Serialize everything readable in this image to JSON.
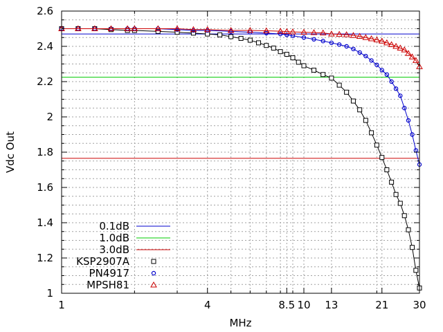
{
  "chart_data": {
    "type": "line",
    "title": "",
    "xlabel": "MHz",
    "ylabel": "Vdc Out",
    "xscale": "log",
    "xlim": [
      1,
      30
    ],
    "ylim": [
      1,
      2.6
    ],
    "grid": true,
    "legend_position": "bottom-left",
    "x_ticks": [
      1,
      4,
      8.5,
      10,
      13,
      21,
      30
    ],
    "x_tick_labels": [
      "1",
      "4",
      "8.5",
      "10",
      "13",
      "21",
      "30"
    ],
    "y_ticks": [
      1,
      1.2,
      1.4,
      1.6,
      1.8,
      2,
      2.2,
      2.4,
      2.6
    ],
    "y_tick_labels": [
      "1",
      "1.2",
      "1.4",
      "1.6",
      "1.8",
      "2",
      "2.2",
      "2.4",
      "2.6"
    ],
    "y_minor_step": 0.05,
    "x_minor_ticks": [
      2,
      3,
      5,
      6,
      7,
      8,
      9,
      20
    ],
    "reference_lines": [
      {
        "name": "0.1dB",
        "y": 2.47,
        "color": "#0000cc"
      },
      {
        "name": "1.0dB",
        "y": 2.225,
        "color": "#00cc00"
      },
      {
        "name": "3.0dB",
        "y": 1.765,
        "color": "#cc0000"
      }
    ],
    "series": [
      {
        "name": "KSP2907A",
        "marker": "square",
        "color": "#000000",
        "x": [
          1,
          1.17,
          1.37,
          1.6,
          1.87,
          2,
          2.5,
          3,
          3.5,
          4,
          4.5,
          5,
          5.5,
          6,
          6.5,
          7,
          7.5,
          8,
          8.5,
          9,
          9.5,
          10,
          11,
          12,
          13,
          14,
          15,
          16,
          17,
          18,
          19,
          20,
          21,
          22,
          23,
          24,
          25,
          26,
          27,
          28,
          29,
          30
        ],
        "y": [
          2.5,
          2.5,
          2.5,
          2.495,
          2.49,
          2.49,
          2.485,
          2.48,
          2.475,
          2.47,
          2.465,
          2.455,
          2.445,
          2.435,
          2.42,
          2.405,
          2.39,
          2.37,
          2.355,
          2.335,
          2.31,
          2.29,
          2.265,
          2.24,
          2.22,
          2.18,
          2.14,
          2.09,
          2.04,
          1.98,
          1.91,
          1.84,
          1.77,
          1.7,
          1.63,
          1.56,
          1.51,
          1.44,
          1.36,
          1.26,
          1.13,
          1.03
        ]
      },
      {
        "name": "PN4917",
        "marker": "circle",
        "color": "#0000cc",
        "x": [
          1,
          1.17,
          1.37,
          1.6,
          1.87,
          2,
          2.5,
          3,
          3.5,
          4,
          5,
          6,
          7,
          8,
          8.5,
          9,
          10,
          11,
          12,
          13,
          14,
          15,
          16,
          17,
          18,
          19,
          20,
          21,
          22,
          23,
          24,
          25,
          26,
          27,
          28,
          29,
          30
        ],
        "y": [
          2.5,
          2.5,
          2.5,
          2.5,
          2.5,
          2.5,
          2.5,
          2.495,
          2.49,
          2.49,
          2.485,
          2.48,
          2.475,
          2.47,
          2.465,
          2.46,
          2.45,
          2.44,
          2.43,
          2.42,
          2.41,
          2.4,
          2.385,
          2.365,
          2.345,
          2.32,
          2.295,
          2.265,
          2.24,
          2.2,
          2.16,
          2.12,
          2.05,
          1.98,
          1.9,
          1.81,
          1.73
        ]
      },
      {
        "name": "MPSH81",
        "marker": "triangle",
        "color": "#cc0000",
        "x": [
          1,
          1.17,
          1.37,
          1.6,
          1.87,
          2,
          2.5,
          3,
          3.5,
          4,
          5,
          6,
          7,
          8,
          8.5,
          9,
          10,
          11,
          12,
          13,
          14,
          15,
          16,
          17,
          18,
          19,
          20,
          21,
          22,
          23,
          24,
          25,
          26,
          27,
          28,
          29,
          30
        ],
        "y": [
          2.5,
          2.5,
          2.5,
          2.5,
          2.5,
          2.5,
          2.5,
          2.5,
          2.495,
          2.495,
          2.49,
          2.49,
          2.488,
          2.486,
          2.484,
          2.482,
          2.48,
          2.478,
          2.476,
          2.47,
          2.468,
          2.466,
          2.462,
          2.457,
          2.45,
          2.443,
          2.437,
          2.43,
          2.42,
          2.41,
          2.4,
          2.39,
          2.38,
          2.36,
          2.34,
          2.32,
          2.285
        ]
      }
    ]
  }
}
